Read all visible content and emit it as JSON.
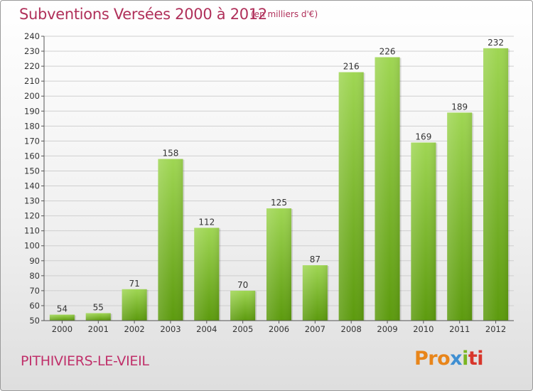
{
  "title": "Subventions Versées 2000 à 2012",
  "subtitle": "(en milliers d'€)",
  "commune": "PITHIVIERS-LE-VIEIL",
  "logo": {
    "text": "Proxiti",
    "parts": [
      "Pro",
      "x",
      "i",
      "ti"
    ]
  },
  "colors": {
    "title": "#b0305a",
    "bar_top": "#9bd24e",
    "bar_bottom": "#5f9e10",
    "grid": "#cfcfcf"
  },
  "chart_data": {
    "type": "bar",
    "title": "Subventions Versées 2000 à 2012",
    "subtitle": "(en milliers d'€)",
    "categories": [
      "2000",
      "2001",
      "2002",
      "2003",
      "2004",
      "2005",
      "2006",
      "2007",
      "2008",
      "2009",
      "2010",
      "2011",
      "2012"
    ],
    "values": [
      54,
      55,
      71,
      158,
      112,
      70,
      125,
      87,
      216,
      226,
      169,
      189,
      232
    ],
    "ylim": [
      50,
      240
    ],
    "ytick_step": 10,
    "grid": true,
    "data_labels": true
  }
}
